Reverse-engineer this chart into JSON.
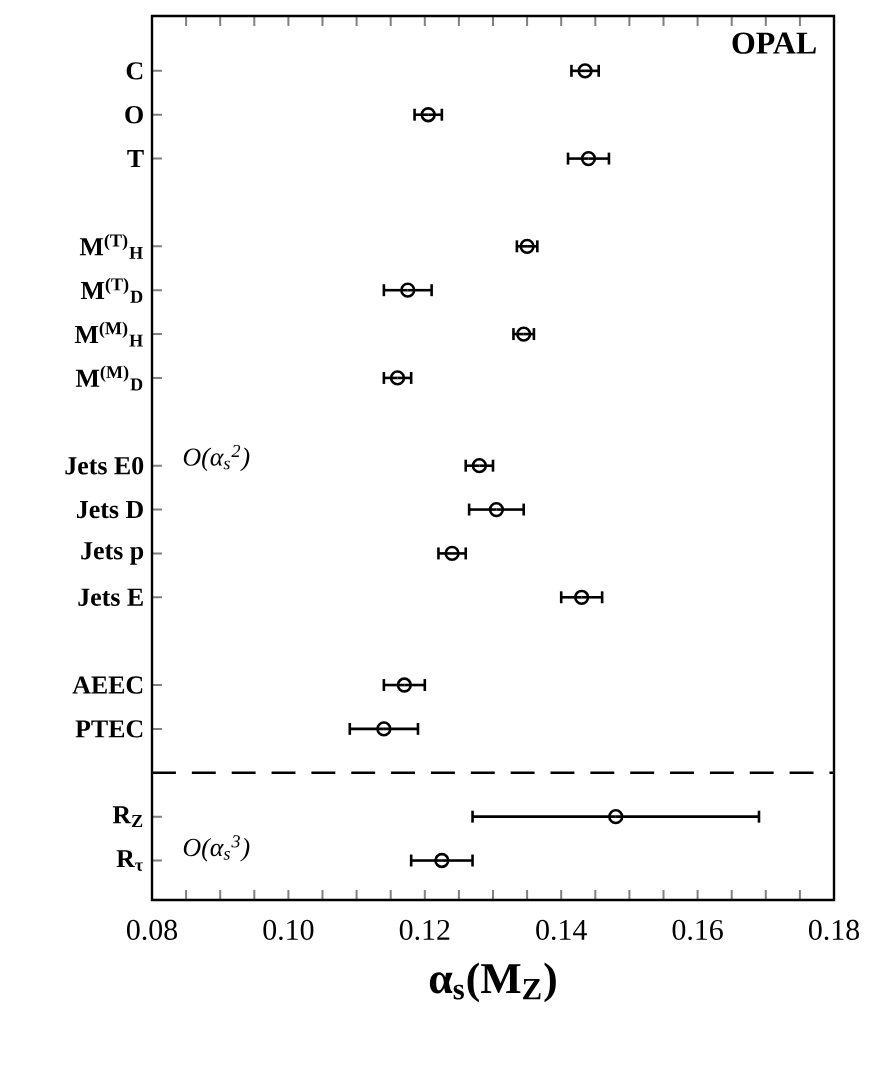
{
  "chart_data": {
    "type": "scatter",
    "orientation": "horizontal",
    "categories": [
      "C",
      "O",
      "T",
      null,
      "M$^{(T)}$$_{H}$",
      "M$^{(T)}$$_{D}$",
      "M$^{(M)}$$_{H}$",
      "M$^{(M)}$$_{D}$",
      null,
      "Jets E0",
      "Jets D",
      "Jets p",
      "Jets E",
      null,
      "AEEC",
      "PTEC",
      null,
      "R$_{Z}$",
      "R$_{τ}$"
    ],
    "values": [
      0.1435,
      0.1205,
      0.144,
      null,
      0.135,
      0.1175,
      0.1345,
      0.116,
      null,
      0.128,
      0.1305,
      0.124,
      0.143,
      null,
      0.117,
      0.114,
      null,
      0.148,
      0.1225
    ],
    "errors": [
      0.002,
      0.002,
      0.003,
      null,
      0.0015,
      0.0035,
      0.0015,
      0.002,
      null,
      0.002,
      0.004,
      0.002,
      0.003,
      null,
      0.003,
      0.005,
      null,
      0.021,
      0.0045
    ],
    "color": "#000000",
    "marker": "circle",
    "xlabel": "α$_{s}$(M$_{Z}$)",
    "xlim": [
      0.08,
      0.18
    ],
    "xticks": [
      {
        "value": 0.08,
        "label": "0.08"
      },
      {
        "value": 0.085,
        "label": null
      },
      {
        "value": 0.09,
        "label": null
      },
      {
        "value": 0.095,
        "label": null
      },
      {
        "value": 0.1,
        "label": "0.10"
      },
      {
        "value": 0.105,
        "label": null
      },
      {
        "value": 0.11,
        "label": null
      },
      {
        "value": 0.115,
        "label": null
      },
      {
        "value": 0.12,
        "label": "0.12"
      },
      {
        "value": 0.125,
        "label": null
      },
      {
        "value": 0.13,
        "label": null
      },
      {
        "value": 0.135,
        "label": null
      },
      {
        "value": 0.14,
        "label": "0.14"
      },
      {
        "value": 0.145,
        "label": null
      },
      {
        "value": 0.15,
        "label": null
      },
      {
        "value": 0.155,
        "label": null
      },
      {
        "value": 0.16,
        "label": "0.16"
      },
      {
        "value": 0.165,
        "label": null
      },
      {
        "value": 0.17,
        "label": null
      },
      {
        "value": 0.175,
        "label": null
      },
      {
        "value": 0.18,
        "label": "0.18"
      }
    ],
    "annotations": [
      "OPAL",
      "O(α$_{s}$$^{2}$)",
      "O(α$_{s}$$^{3}$)"
    ]
  }
}
